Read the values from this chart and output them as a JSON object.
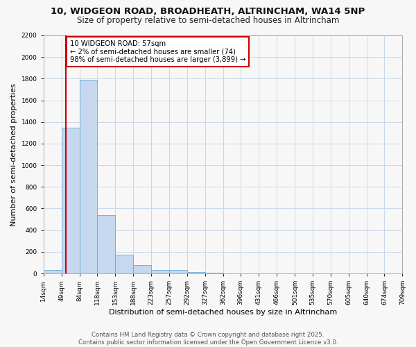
{
  "title1": "10, WIDGEON ROAD, BROADHEATH, ALTRINCHAM, WA14 5NP",
  "title2": "Size of property relative to semi-detached houses in Altrincham",
  "xlabel": "Distribution of semi-detached houses by size in Altrincham",
  "ylabel": "Number of semi-detached properties",
  "bin_edges": [
    14,
    49,
    84,
    118,
    153,
    188,
    223,
    257,
    292,
    327,
    362,
    396,
    431,
    466,
    501,
    535,
    570,
    605,
    640,
    674,
    709
  ],
  "bar_heights": [
    35,
    1350,
    1790,
    540,
    175,
    80,
    35,
    32,
    15,
    5,
    2,
    0,
    0,
    0,
    0,
    0,
    0,
    0,
    0,
    0
  ],
  "bar_color": "#c5d8f0",
  "bar_edge_color": "#6aaad4",
  "property_size": 57,
  "red_line_color": "#cc0000",
  "annotation_text": "10 WIDGEON ROAD: 57sqm\n← 2% of semi-detached houses are smaller (74)\n98% of semi-detached houses are larger (3,899) →",
  "annotation_box_color": "#ffffff",
  "annotation_box_edge": "#cc0000",
  "ylim": [
    0,
    2200
  ],
  "yticks": [
    0,
    200,
    400,
    600,
    800,
    1000,
    1200,
    1400,
    1600,
    1800,
    2000,
    2200
  ],
  "footer1": "Contains HM Land Registry data © Crown copyright and database right 2025.",
  "footer2": "Contains public sector information licensed under the Open Government Licence v3.0.",
  "bg_color": "#f7f7f7",
  "plot_bg_color": "#f7f7f7",
  "grid_color": "#c8d8e8",
  "title_fontsize": 9.5,
  "subtitle_fontsize": 8.5,
  "tick_label_fontsize": 6.5,
  "axis_label_fontsize": 8
}
